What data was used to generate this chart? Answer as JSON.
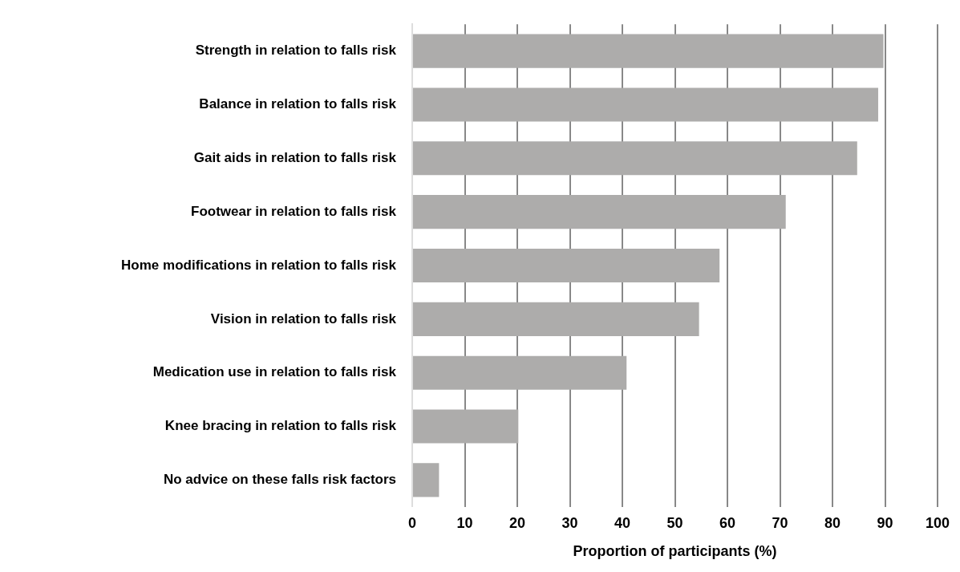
{
  "chart_data": {
    "type": "bar",
    "orientation": "horizontal",
    "xlabel": "Proportion of participants (%)",
    "categories": [
      "Strength in relation to falls risk",
      "Balance in relation to falls risk",
      "Gait aids in relation to falls risk",
      "Footwear in relation to falls risk",
      "Home modifications in relation to falls risk",
      "Vision in relation to falls risk",
      "Medication use in relation to falls risk",
      "Knee bracing in relation to falls risk",
      "No advice on these falls risk factors"
    ],
    "values": [
      89.7,
      88.7,
      84.7,
      71.1,
      58.5,
      54.6,
      40.8,
      20.2,
      5.1
    ],
    "color": "#adacab",
    "xlim": [
      0,
      100
    ],
    "xticks": [
      0,
      10,
      20,
      30,
      40,
      50,
      60,
      70,
      80,
      90,
      100
    ],
    "grid": "x",
    "legend": false
  }
}
